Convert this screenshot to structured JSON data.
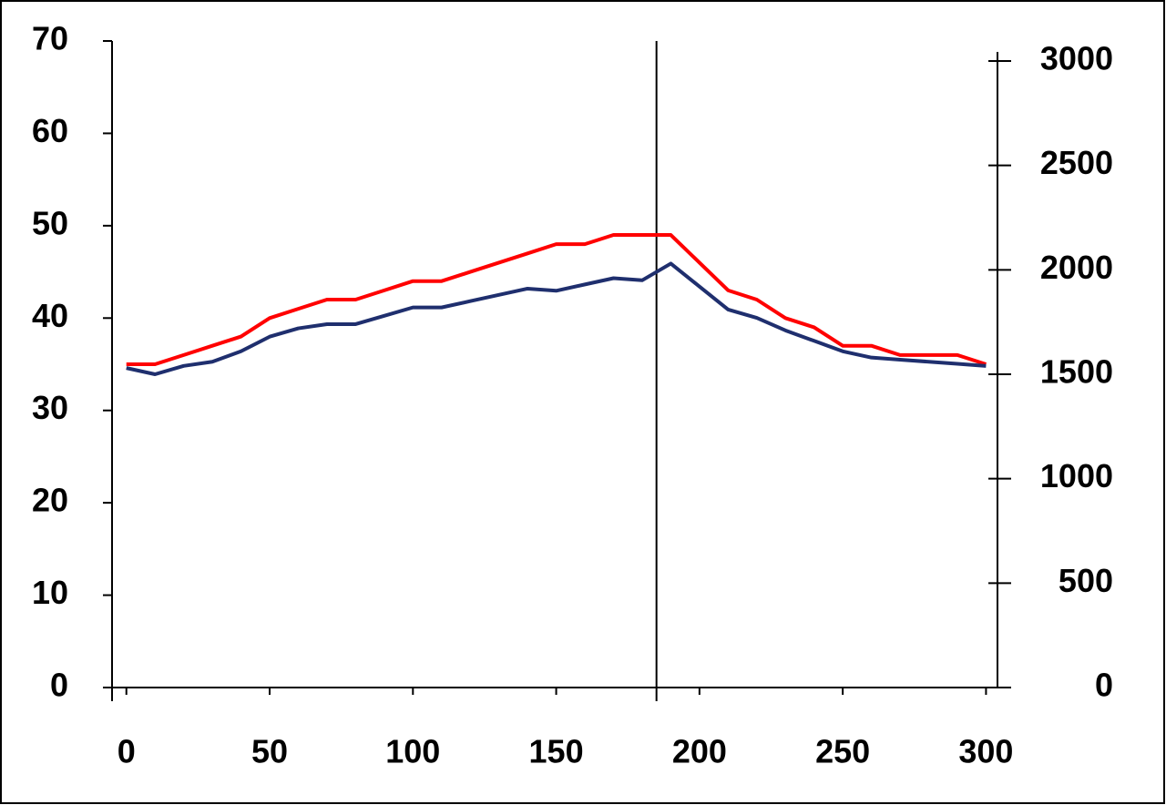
{
  "chart_data": {
    "type": "line",
    "x": [
      0,
      10,
      20,
      30,
      40,
      50,
      60,
      70,
      80,
      90,
      100,
      110,
      120,
      130,
      140,
      150,
      160,
      170,
      180,
      190,
      200,
      210,
      220,
      230,
      240,
      250,
      260,
      270,
      280,
      290,
      300
    ],
    "series": [
      {
        "color": "#ff0000",
        "values": [
          35,
          35,
          36,
          37,
          38,
          40,
          41,
          42,
          42,
          43,
          44,
          44,
          45,
          46,
          47,
          48,
          48,
          49,
          49,
          49,
          46,
          43,
          42,
          40,
          39,
          37,
          37,
          36,
          36,
          36,
          35
        ]
      },
      {
        "color": "#1f2f6e",
        "axis": "y2",
        "values": [
          1530,
          1500,
          1540,
          1560,
          1610,
          1680,
          1720,
          1740,
          1740,
          1780,
          1820,
          1820,
          1850,
          1880,
          1910,
          1900,
          1930,
          1960,
          1950,
          2030,
          1920,
          1810,
          1770,
          1710,
          1660,
          1610,
          1580,
          1570,
          1560,
          1550,
          1540
        ]
      }
    ],
    "xlim": [
      -5,
      304
    ],
    "xticks": [
      0,
      50,
      100,
      150,
      200,
      250,
      300
    ],
    "ylim": [
      0,
      70
    ],
    "yticks": [
      0,
      10,
      20,
      30,
      40,
      50,
      60,
      70
    ],
    "y2lim": [
      0,
      3000
    ],
    "y2ticks": [
      0,
      500,
      1000,
      1500,
      2000,
      2500,
      3000
    ],
    "vline": 185
  }
}
